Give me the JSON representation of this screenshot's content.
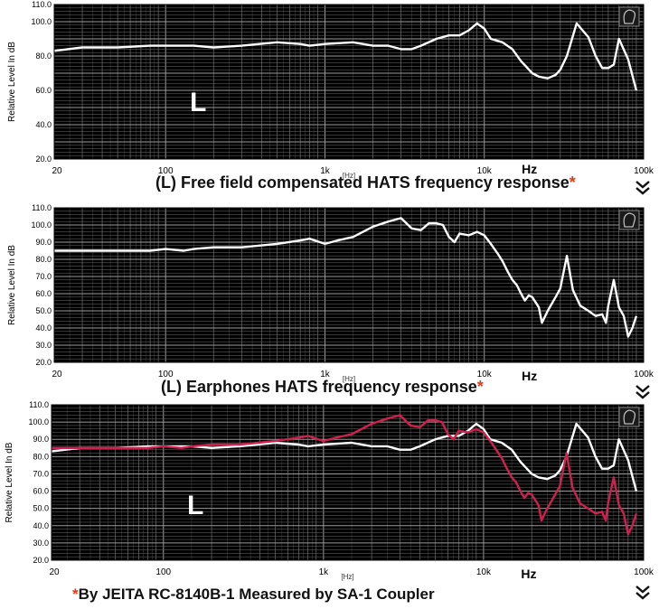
{
  "colors": {
    "plot_bg": "#000000",
    "grid": "#6e6e6e",
    "grid_major": "#9a9a9a",
    "white_line": "#ffffff",
    "red_line": "#d02050",
    "star": "#e53a1a"
  },
  "icons": [
    "hats-logo-icon",
    "chevron-double-down-icon"
  ],
  "panels": {
    "top": {
      "caption": "(L) Free field compensated HATS frequency response",
      "star": "*",
      "channel_label": "L"
    },
    "middle": {
      "caption": "(L) Earphones HATS frequency response",
      "star": "*"
    },
    "bottom": {
      "star": "*",
      "caption": "By JEITA RC-8140B-1  Measured by SA-1 Coupler",
      "channel_label": "L"
    }
  },
  "chart_data": [
    {
      "type": "line",
      "ylabel": "Relative Level In dB",
      "xlabel": "Hz",
      "xscale": "log",
      "xlim": [
        20,
        100000
      ],
      "ylim": [
        20,
        110
      ],
      "x_tick_labels": [
        "20",
        "100",
        "1k",
        "10k",
        "100k"
      ],
      "x_ticks": [
        20,
        100,
        1000,
        10000,
        100000
      ],
      "y_ticks": [
        20,
        40,
        60,
        80,
        100,
        110
      ],
      "y_tick_labels": [
        "20.0",
        "40.0",
        "60.0",
        "80.0",
        "100.0",
        "110.0"
      ],
      "center_axis_label": "[Hz]",
      "grid": true,
      "series": [
        {
          "color": "#ffffff",
          "x": [
            20,
            30,
            50,
            80,
            100,
            150,
            200,
            300,
            500,
            700,
            800,
            1000,
            1500,
            2000,
            2500,
            3000,
            3500,
            4000,
            5000,
            6000,
            7000,
            8000,
            9000,
            10000,
            11000,
            13000,
            15000,
            17000,
            20000,
            22000,
            25000,
            28000,
            30000,
            33000,
            38000,
            45000,
            50000,
            55000,
            60000,
            65000,
            70000,
            80000,
            90000
          ],
          "y": [
            83,
            85,
            85,
            86,
            86,
            86,
            85,
            86,
            88,
            87,
            86,
            87,
            88,
            86,
            86,
            84,
            84,
            86,
            90,
            92,
            92,
            95,
            99,
            96,
            90,
            88,
            84,
            77,
            70,
            68,
            67,
            69,
            72,
            80,
            99,
            91,
            80,
            73,
            73,
            75,
            90,
            78,
            60
          ]
        }
      ]
    },
    {
      "type": "line",
      "ylabel": "Relative Level In dB",
      "xlabel": "Hz",
      "xscale": "log",
      "xlim": [
        20,
        100000
      ],
      "ylim": [
        20,
        110
      ],
      "x_tick_labels": [
        "20",
        "100",
        "1k",
        "10k",
        "100k"
      ],
      "x_ticks": [
        20,
        100,
        1000,
        10000,
        100000
      ],
      "y_ticks": [
        20,
        30,
        40,
        50,
        60,
        70,
        80,
        90,
        100,
        110
      ],
      "y_tick_labels": [
        "20.0",
        "30.0",
        "40.0",
        "50.0",
        "60.0",
        "70.0",
        "80.0",
        "90.0",
        "100.0",
        "110.0"
      ],
      "center_axis_label": "[Hz]",
      "grid": true,
      "series": [
        {
          "color": "#ffffff",
          "x": [
            20,
            30,
            50,
            80,
            100,
            130,
            150,
            200,
            300,
            500,
            700,
            800,
            1000,
            1200,
            1500,
            2000,
            2500,
            3000,
            3500,
            4000,
            4500,
            5000,
            5500,
            6000,
            6500,
            7000,
            8000,
            9000,
            10000,
            11000,
            12000,
            13000,
            14000,
            15000,
            16000,
            17000,
            18000,
            19000,
            20000,
            22000,
            23000,
            25000,
            28000,
            30000,
            33000,
            36000,
            40000,
            45000,
            50000,
            55000,
            58000,
            60000,
            65000,
            70000,
            75000,
            80000,
            85000,
            90000
          ],
          "y": [
            85,
            85,
            85,
            85,
            86,
            85,
            86,
            87,
            87,
            89,
            91,
            92,
            89,
            91,
            93,
            99,
            102,
            104,
            98,
            97,
            101,
            101,
            100,
            93,
            90,
            95,
            94,
            96,
            94,
            89,
            84,
            79,
            73,
            68,
            65,
            60,
            56,
            59,
            58,
            52,
            43,
            50,
            58,
            63,
            82,
            62,
            53,
            50,
            47,
            48,
            43,
            53,
            68,
            52,
            47,
            35,
            40,
            47
          ]
        }
      ]
    },
    {
      "type": "line",
      "ylabel": "Relative Level In dB",
      "xlabel": "Hz",
      "xscale": "log",
      "xlim": [
        20,
        100000
      ],
      "ylim": [
        20,
        110
      ],
      "x_tick_labels": [
        "20",
        "100",
        "1k",
        "10k",
        "100k"
      ],
      "x_ticks": [
        20,
        100,
        1000,
        10000,
        100000
      ],
      "y_ticks": [
        20,
        30,
        40,
        50,
        60,
        70,
        80,
        90,
        100,
        110
      ],
      "y_tick_labels": [
        "20.0",
        "30.0",
        "40.0",
        "50.0",
        "60.0",
        "70.0",
        "80.0",
        "90.0",
        "100.0",
        "110.0"
      ],
      "center_axis_label": "[Hz]",
      "grid": true,
      "series": [
        {
          "color": "#ffffff",
          "x": [
            20,
            30,
            50,
            80,
            100,
            150,
            200,
            300,
            500,
            700,
            800,
            1000,
            1500,
            2000,
            2500,
            3000,
            3500,
            4000,
            5000,
            6000,
            7000,
            8000,
            9000,
            10000,
            11000,
            13000,
            15000,
            17000,
            20000,
            22000,
            25000,
            28000,
            30000,
            33000,
            38000,
            45000,
            50000,
            55000,
            60000,
            65000,
            70000,
            80000,
            90000
          ],
          "y": [
            83,
            85,
            85,
            86,
            86,
            86,
            85,
            86,
            88,
            87,
            86,
            87,
            88,
            86,
            86,
            84,
            84,
            86,
            90,
            92,
            92,
            95,
            99,
            96,
            90,
            88,
            84,
            77,
            70,
            68,
            67,
            69,
            72,
            80,
            99,
            91,
            80,
            73,
            73,
            75,
            90,
            78,
            60
          ]
        },
        {
          "color": "#d02050",
          "x": [
            20,
            30,
            50,
            80,
            100,
            130,
            150,
            200,
            300,
            500,
            700,
            800,
            1000,
            1200,
            1500,
            2000,
            2500,
            3000,
            3500,
            4000,
            4500,
            5000,
            5500,
            6000,
            6500,
            7000,
            8000,
            9000,
            10000,
            11000,
            12000,
            13000,
            14000,
            15000,
            16000,
            17000,
            18000,
            19000,
            20000,
            22000,
            23000,
            25000,
            28000,
            30000,
            33000,
            36000,
            40000,
            45000,
            50000,
            55000,
            58000,
            60000,
            65000,
            70000,
            75000,
            80000,
            85000,
            90000
          ],
          "y": [
            85,
            85,
            85,
            85,
            86,
            85,
            86,
            87,
            87,
            89,
            91,
            92,
            89,
            91,
            93,
            99,
            102,
            104,
            98,
            97,
            101,
            101,
            100,
            93,
            90,
            95,
            94,
            96,
            94,
            89,
            84,
            79,
            73,
            68,
            65,
            60,
            56,
            59,
            58,
            52,
            43,
            50,
            58,
            63,
            82,
            62,
            53,
            50,
            47,
            48,
            43,
            53,
            68,
            52,
            47,
            35,
            40,
            47
          ]
        }
      ]
    }
  ]
}
